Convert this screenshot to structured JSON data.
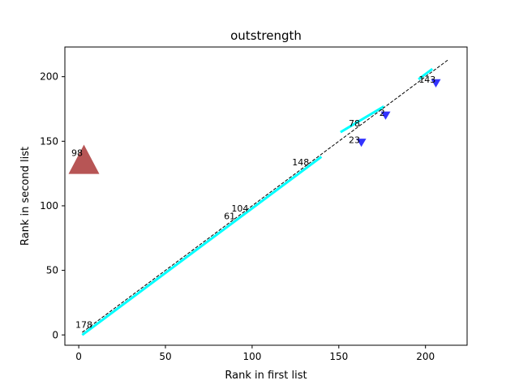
{
  "chart_data": {
    "type": "scatter",
    "title": "outstrength",
    "xlabel": "Rank in first list",
    "ylabel": "Rank in second list",
    "xlim": [
      -8,
      224
    ],
    "ylim": [
      -8,
      223
    ],
    "xticks": [
      0,
      50,
      100,
      150,
      200
    ],
    "yticks": [
      0,
      50,
      100,
      150,
      200
    ],
    "grid": false,
    "legend": "none",
    "colors": {
      "line": "#00ffff",
      "diagonal": "#000000",
      "down_marker": "#0000ff",
      "up_marker": "#a52a2a"
    },
    "diagonal": [
      [
        2,
        2
      ],
      [
        213,
        213
      ]
    ],
    "line_segments": [
      [
        [
          2,
          0
        ],
        [
          140,
          138
        ]
      ],
      [
        [
          151,
          157
        ],
        [
          176,
          177
        ]
      ],
      [
        [
          196,
          198
        ],
        [
          204,
          206
        ]
      ]
    ],
    "down_markers": [
      {
        "x": 206,
        "y": 195
      },
      {
        "x": 177,
        "y": 170
      },
      {
        "x": 163,
        "y": 149
      }
    ],
    "up_markers": [
      {
        "x": 3,
        "y": 136
      }
    ],
    "point_labels": [
      {
        "text": "178",
        "x": 3,
        "y": 8
      },
      {
        "text": "61",
        "x": 87,
        "y": 92
      },
      {
        "text": "104",
        "x": 93,
        "y": 98
      },
      {
        "text": "148",
        "x": 128,
        "y": 134
      },
      {
        "text": "78",
        "x": 159,
        "y": 164
      },
      {
        "text": "23",
        "x": 159,
        "y": 151
      },
      {
        "text": "2",
        "x": 175,
        "y": 172
      },
      {
        "text": "143",
        "x": 201,
        "y": 198
      },
      {
        "text": "98",
        "x": -1,
        "y": 141
      }
    ]
  }
}
